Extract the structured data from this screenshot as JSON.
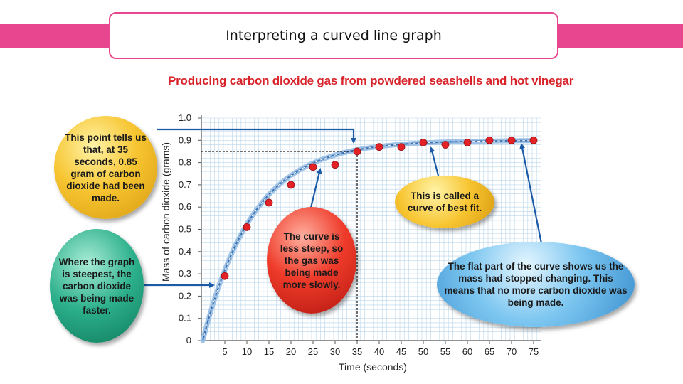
{
  "slide": {
    "title": "Interpreting a curved line graph"
  },
  "annotations": {
    "point": "This point tells us that, at 35 seconds, 0.85 gram of carbon dioxide had been made.",
    "steep": "Where the graph is steepest, the carbon dioxide was being made faster.",
    "less_steep": "The curve is less steep, so the gas was being made more slowly.",
    "best_fit": "This is called a curve of best fit.",
    "flat": "The flat part of the curve shows us the mass had stopped changing. This means that no more carbon dioxide was being made."
  },
  "colors": {
    "accent_bar": "#e8478f",
    "title_red": "#d8232a",
    "grid": "#b9d6ea",
    "curve": "#3a6fb0",
    "points": "#e32228",
    "arrow": "#1b5aa6"
  },
  "chart_data": {
    "type": "scatter",
    "title": "Producing carbon dioxide gas from powdered seashells and hot vinegar",
    "xlabel": "Time (seconds)",
    "ylabel": "Mass of carbon dioxide (grams)",
    "xlim": [
      0,
      75
    ],
    "ylim": [
      0,
      1.0
    ],
    "xticks": [
      5,
      10,
      15,
      20,
      25,
      30,
      35,
      40,
      45,
      50,
      55,
      60,
      65,
      70,
      75
    ],
    "yticks": [
      "0",
      "0.1",
      "0.2",
      "0.3",
      "0.4",
      "0.5",
      "0.6",
      "0.7",
      "0.8",
      "0.9",
      "1.0"
    ],
    "grid": true,
    "best_fit_curve": true,
    "highlight": {
      "x": 35,
      "y": 0.85
    },
    "series": [
      {
        "x": [
          5,
          10,
          15,
          20,
          25,
          30,
          35,
          40,
          45,
          50,
          55,
          60,
          65,
          70,
          75
        ],
        "y": [
          0.29,
          0.51,
          0.62,
          0.7,
          0.78,
          0.79,
          0.85,
          0.87,
          0.87,
          0.89,
          0.88,
          0.89,
          0.9,
          0.9,
          0.9
        ]
      }
    ]
  }
}
